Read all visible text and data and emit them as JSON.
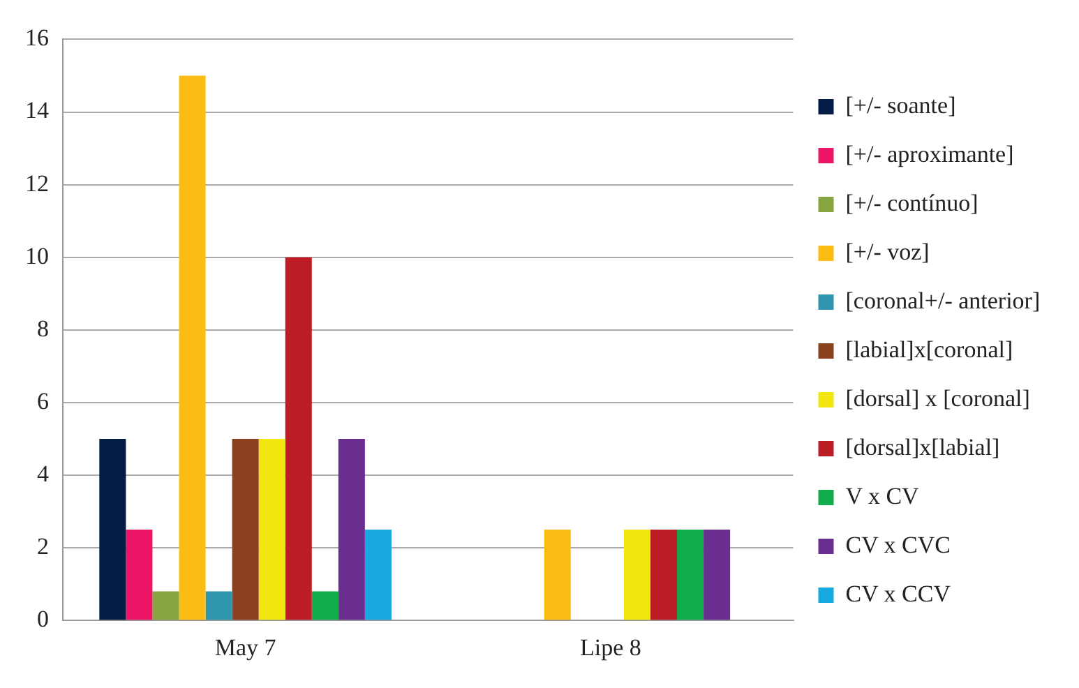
{
  "chart_data": {
    "type": "bar",
    "categories": [
      "May 7",
      "Lipe 8"
    ],
    "series": [
      {
        "name": "[+/- soante]",
        "color": "#021c45",
        "values": [
          5,
          null
        ]
      },
      {
        "name": "[+/- aproximante]",
        "color": "#ec1566",
        "values": [
          2.5,
          null
        ]
      },
      {
        "name": "[+/- contínuo]",
        "color": "#86a541",
        "values": [
          0.8,
          null
        ]
      },
      {
        "name": "[+/- voz]",
        "color": "#fcbc13",
        "values": [
          15,
          2.5
        ]
      },
      {
        "name": "[coronal+/- anterior]",
        "color": "#3096b0",
        "values": [
          0.8,
          null
        ]
      },
      {
        "name": "[labial]x[coronal]",
        "color": "#8b401e",
        "values": [
          5,
          null
        ]
      },
      {
        "name": "[dorsal] x [coronal]",
        "color": "#f1e60f",
        "values": [
          5,
          2.5
        ]
      },
      {
        "name": "[dorsal]x[labial]",
        "color": "#bd1e26",
        "values": [
          10,
          2.5
        ]
      },
      {
        "name": "V x CV",
        "color": "#11ac4b",
        "values": [
          0.8,
          2.5
        ]
      },
      {
        "name": "CV x CVC",
        "color": "#6a2e91",
        "values": [
          5,
          2.5
        ]
      },
      {
        "name": "CV x CCV",
        "color": "#19a9e1",
        "values": [
          2.5,
          null
        ]
      }
    ],
    "ylim": [
      0,
      16
    ],
    "yticks": [
      0,
      2,
      4,
      6,
      8,
      10,
      12,
      14,
      16
    ],
    "grid": "y",
    "legend": "right"
  }
}
